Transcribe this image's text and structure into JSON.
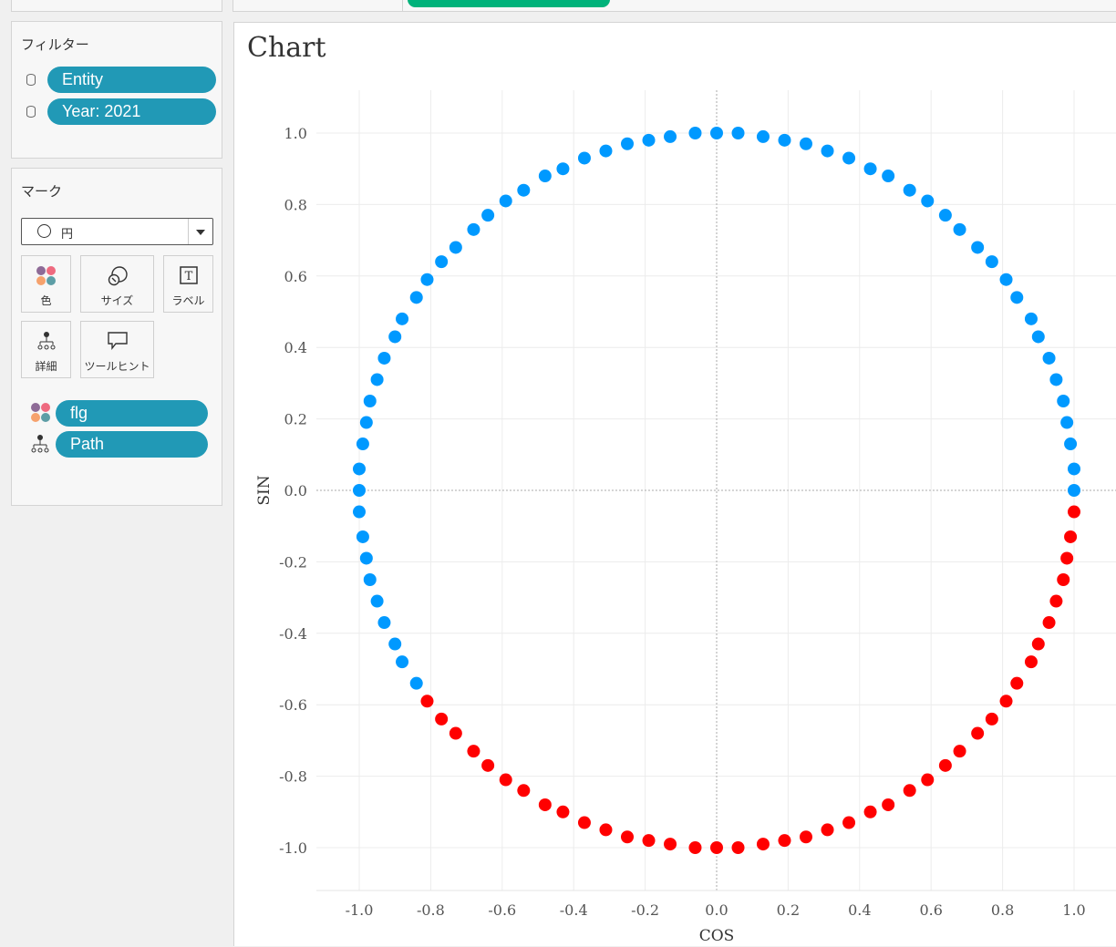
{
  "filters": {
    "title": "フィルター",
    "items": [
      {
        "label": "Entity"
      },
      {
        "label": "Year: 2021"
      }
    ]
  },
  "marks": {
    "title": "マーク",
    "mark_type": "円",
    "cards": [
      {
        "label": "色",
        "icon": "color-icon"
      },
      {
        "label": "サイズ",
        "icon": "size-icon"
      },
      {
        "label": "ラベル",
        "icon": "label-icon"
      },
      {
        "label": "詳細",
        "icon": "detail-icon"
      },
      {
        "label": "ツールヒント",
        "icon": "tooltip-icon"
      }
    ],
    "fields": [
      {
        "label": "flg",
        "icon": "color-icon"
      },
      {
        "label": "Path",
        "icon": "detail-icon"
      }
    ]
  },
  "colors": {
    "pill": "#2199b6",
    "series_blue": "#0099ff",
    "series_red": "#ff0000",
    "top_pill": "#00b27a"
  },
  "chart_data": {
    "type": "scatter",
    "title": "Chart",
    "xlabel": "COS",
    "ylabel": "SIN",
    "xlim": [
      -1.12,
      1.12
    ],
    "ylim": [
      -1.12,
      1.12
    ],
    "grid": true,
    "x_ticks": [
      "-1.0",
      "-0.8",
      "-0.6",
      "-0.4",
      "-0.2",
      "0.0",
      "0.2",
      "0.4",
      "0.6",
      "0.8",
      "1.0"
    ],
    "y_ticks": [
      "1.0",
      "0.8",
      "0.6",
      "0.4",
      "0.2",
      "0.0",
      "-0.2",
      "-0.4",
      "-0.6",
      "-0.8",
      "-1.0"
    ],
    "series": [
      {
        "color": "#0099ff",
        "x": [
          1.0,
          1.0,
          0.99,
          0.98,
          0.97,
          0.95,
          0.93,
          0.9,
          0.88,
          0.84,
          0.81,
          0.77,
          0.73,
          0.68,
          0.64,
          0.59,
          0.54,
          0.48,
          0.43,
          0.37,
          0.31,
          0.25,
          0.19,
          0.13,
          0.06,
          0.0,
          -0.06,
          -0.13,
          -0.19,
          -0.25,
          -0.31,
          -0.37,
          -0.43,
          -0.48,
          -0.54,
          -0.59,
          -0.64,
          -0.68,
          -0.73,
          -0.77,
          -0.81,
          -0.84,
          -0.88,
          -0.9,
          -0.93,
          -0.95,
          -0.97,
          -0.98,
          -0.99,
          -1.0,
          -1.0,
          -1.0,
          -0.99,
          -0.98,
          -0.97,
          -0.95,
          -0.93,
          -0.9,
          -0.88,
          -0.84
        ],
        "y": [
          0.0,
          0.06,
          0.13,
          0.19,
          0.25,
          0.31,
          0.37,
          0.43,
          0.48,
          0.54,
          0.59,
          0.64,
          0.68,
          0.73,
          0.77,
          0.81,
          0.84,
          0.88,
          0.9,
          0.93,
          0.95,
          0.97,
          0.98,
          0.99,
          1.0,
          1.0,
          1.0,
          0.99,
          0.98,
          0.97,
          0.95,
          0.93,
          0.9,
          0.88,
          0.84,
          0.81,
          0.77,
          0.73,
          0.68,
          0.64,
          0.59,
          0.54,
          0.48,
          0.43,
          0.37,
          0.31,
          0.25,
          0.19,
          0.13,
          0.06,
          0.0,
          -0.06,
          -0.13,
          -0.19,
          -0.25,
          -0.31,
          -0.37,
          -0.43,
          -0.48,
          -0.54
        ]
      },
      {
        "color": "#ff0000",
        "x": [
          -0.81,
          -0.77,
          -0.73,
          -0.68,
          -0.64,
          -0.59,
          -0.54,
          -0.48,
          -0.43,
          -0.37,
          -0.31,
          -0.25,
          -0.19,
          -0.13,
          -0.06,
          0.0,
          0.06,
          0.13,
          0.19,
          0.25,
          0.31,
          0.37,
          0.43,
          0.48,
          0.54,
          0.59,
          0.64,
          0.68,
          0.73,
          0.77,
          0.81,
          0.84,
          0.88,
          0.9,
          0.93,
          0.95,
          0.97,
          0.98,
          0.99,
          1.0
        ],
        "y": [
          -0.59,
          -0.64,
          -0.68,
          -0.73,
          -0.77,
          -0.81,
          -0.84,
          -0.88,
          -0.9,
          -0.93,
          -0.95,
          -0.97,
          -0.98,
          -0.99,
          -1.0,
          -1.0,
          -1.0,
          -0.99,
          -0.98,
          -0.97,
          -0.95,
          -0.93,
          -0.9,
          -0.88,
          -0.84,
          -0.81,
          -0.77,
          -0.73,
          -0.68,
          -0.64,
          -0.59,
          -0.54,
          -0.48,
          -0.43,
          -0.37,
          -0.31,
          -0.25,
          -0.19,
          -0.13,
          -0.06
        ]
      }
    ]
  }
}
